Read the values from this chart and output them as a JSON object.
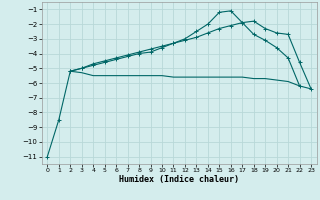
{
  "xlabel": "Humidex (Indice chaleur)",
  "bg_color": "#d4eded",
  "grid_color": "#b8d8d8",
  "line_color": "#006666",
  "xlim": [
    -0.5,
    23.5
  ],
  "ylim": [
    -11.5,
    -0.5
  ],
  "yticks": [
    -11,
    -10,
    -9,
    -8,
    -7,
    -6,
    -5,
    -4,
    -3,
    -2,
    -1
  ],
  "xticks": [
    0,
    1,
    2,
    3,
    4,
    5,
    6,
    7,
    8,
    9,
    10,
    11,
    12,
    13,
    14,
    15,
    16,
    17,
    18,
    19,
    20,
    21,
    22,
    23
  ],
  "line1_x": [
    0,
    1,
    2,
    3,
    4,
    5,
    6,
    7,
    8,
    9,
    10,
    11,
    12,
    13,
    14,
    15,
    16,
    17,
    18,
    19,
    20,
    21,
    22
  ],
  "line1_y": [
    -11,
    -8.5,
    -5.2,
    -5.0,
    -4.8,
    -4.6,
    -4.4,
    -4.2,
    -4.0,
    -3.9,
    -3.6,
    -3.3,
    -3.0,
    -2.5,
    -2.0,
    -1.2,
    -1.1,
    -1.9,
    -2.7,
    -3.1,
    -3.6,
    -4.3,
    -6.2
  ],
  "line2_x": [
    2,
    3,
    4,
    5,
    6,
    7,
    8,
    9,
    10,
    11,
    12,
    13,
    14,
    15,
    16,
    17,
    18,
    19,
    20,
    21,
    22,
    23
  ],
  "line2_y": [
    -5.2,
    -5.0,
    -4.7,
    -4.5,
    -4.3,
    -4.1,
    -3.9,
    -3.7,
    -3.5,
    -3.3,
    -3.1,
    -2.9,
    -2.6,
    -2.3,
    -2.1,
    -1.9,
    -1.8,
    -2.3,
    -2.6,
    -2.7,
    -4.6,
    -6.4
  ],
  "line3_x": [
    2,
    3,
    4,
    5,
    6,
    7,
    8,
    9,
    10,
    11,
    12,
    13,
    14,
    15,
    16,
    17,
    18,
    19,
    20,
    21,
    22,
    23
  ],
  "line3_y": [
    -5.2,
    -5.3,
    -5.5,
    -5.5,
    -5.5,
    -5.5,
    -5.5,
    -5.5,
    -5.5,
    -5.6,
    -5.6,
    -5.6,
    -5.6,
    -5.6,
    -5.6,
    -5.6,
    -5.7,
    -5.7,
    -5.8,
    -5.9,
    -6.2,
    -6.4
  ]
}
